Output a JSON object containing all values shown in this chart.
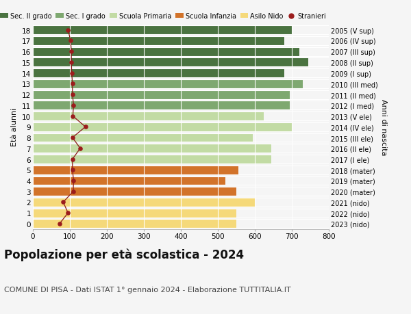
{
  "ages": [
    18,
    17,
    16,
    15,
    14,
    13,
    12,
    11,
    10,
    9,
    8,
    7,
    6,
    5,
    4,
    3,
    2,
    1,
    0
  ],
  "right_labels": [
    "2005 (V sup)",
    "2006 (IV sup)",
    "2007 (III sup)",
    "2008 (II sup)",
    "2009 (I sup)",
    "2010 (III med)",
    "2011 (II med)",
    "2012 (I med)",
    "2013 (V ele)",
    "2014 (IV ele)",
    "2015 (III ele)",
    "2016 (II ele)",
    "2017 (I ele)",
    "2018 (mater)",
    "2019 (mater)",
    "2020 (mater)",
    "2021 (nido)",
    "2022 (nido)",
    "2023 (nido)"
  ],
  "bar_values": [
    700,
    680,
    720,
    745,
    680,
    730,
    695,
    695,
    625,
    700,
    595,
    645,
    645,
    555,
    520,
    550,
    600,
    550,
    550
  ],
  "bar_colors": [
    "#4a7340",
    "#4a7340",
    "#4a7340",
    "#4a7340",
    "#4a7340",
    "#7ea870",
    "#7ea870",
    "#7ea870",
    "#c2dba4",
    "#c2dba4",
    "#c2dba4",
    "#c2dba4",
    "#c2dba4",
    "#d2732a",
    "#d2732a",
    "#d2732a",
    "#f5d97a",
    "#f5d97a",
    "#f5d97a"
  ],
  "stranieri_values": [
    95,
    102,
    104,
    104,
    105,
    107,
    107,
    110,
    108,
    142,
    107,
    128,
    107,
    107,
    110,
    109,
    82,
    95,
    72
  ],
  "title": "Popolazione per età scolastica - 2024",
  "subtitle": "COMUNE DI PISA - Dati ISTAT 1° gennaio 2024 - Elaborazione TUTTITALIA.IT",
  "ylabel": "Età alunni",
  "right_ylabel": "Anni di nascita",
  "xlim": [
    0,
    800
  ],
  "xticks": [
    0,
    100,
    200,
    300,
    400,
    500,
    600,
    700,
    800
  ],
  "legend_labels": [
    "Sec. II grado",
    "Sec. I grado",
    "Scuola Primaria",
    "Scuola Infanzia",
    "Asilo Nido",
    "Stranieri"
  ],
  "legend_colors": [
    "#4a7340",
    "#7ea870",
    "#c2dba4",
    "#d2732a",
    "#f5d97a",
    "#9b1c1c"
  ],
  "bg_color": "#f5f5f5",
  "title_fontsize": 12,
  "subtitle_fontsize": 8
}
